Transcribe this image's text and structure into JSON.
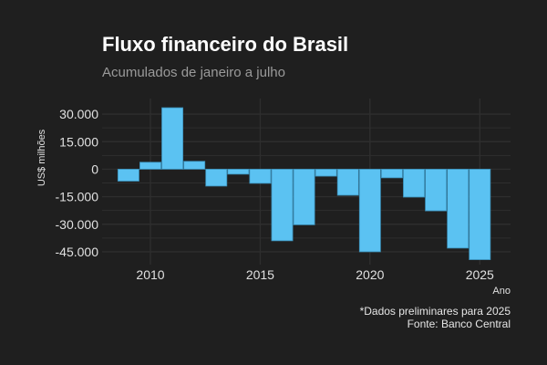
{
  "chart_data": {
    "type": "bar",
    "title": "Fluxo financeiro do Brasil",
    "subtitle": "Acumulados de janeiro a julho",
    "xlabel": "Ano",
    "ylabel": "US$ milhões",
    "caption": [
      "*Dados preliminares para 2025",
      "Fonte: Banco Central"
    ],
    "x": [
      2009,
      2010,
      2011,
      2012,
      2013,
      2014,
      2015,
      2016,
      2017,
      2018,
      2019,
      2020,
      2021,
      2022,
      2023,
      2024,
      2025
    ],
    "values": [
      -6500,
      3800,
      33500,
      4300,
      -9200,
      -2700,
      -7700,
      -39000,
      -30300,
      -3800,
      -14200,
      -45000,
      -4700,
      -15200,
      -22700,
      -43000,
      -49300
    ],
    "xticks": [
      2010,
      2015,
      2020,
      2025
    ],
    "yticks": [
      30000,
      15000,
      0,
      -15000,
      -30000,
      -45000
    ],
    "ytick_labels": [
      "30.000",
      "15.000",
      "0",
      "-15.000",
      "-30.000",
      "-45.000"
    ],
    "xlim": [
      2007.8,
      2026.4
    ],
    "ylim": [
      -52000,
      38500
    ],
    "grid": true,
    "colors": {
      "bar": "#5bc2f2",
      "bar_edge": "#3a8fb8",
      "grid": "#2e2e2e",
      "background": "#1f1f1f"
    }
  }
}
